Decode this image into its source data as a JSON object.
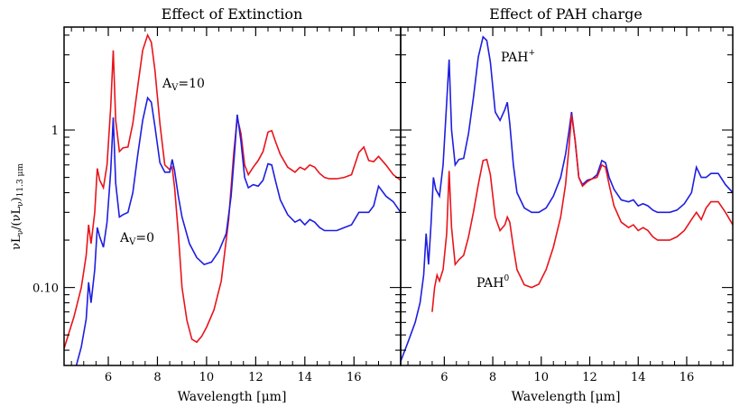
{
  "figure": {
    "ylabel": "νL_ν/(νL_ν)_11.3 μm",
    "ylabel_main": "νL",
    "ylabel_sub1": "ν",
    "ylabel_mid": "/(νL",
    "ylabel_sub2": "ν",
    "ylabel_close": ")",
    "ylabel_sub3": "11.3 μm"
  },
  "chart_data": [
    {
      "type": "line",
      "title": "Effect of Extinction",
      "xlabel": "Wavelength [μm]",
      "xlim": [
        4.2,
        17.9
      ],
      "ylim": [
        0.032,
        4.5
      ],
      "yscale": "log",
      "xticks": [
        6,
        8,
        10,
        12,
        14,
        16
      ],
      "xtick_labels": [
        "6",
        "8",
        "10",
        "12",
        "14",
        "16"
      ],
      "yticks": [
        1,
        0.1
      ],
      "ytick_labels": [
        "1",
        "0.10"
      ],
      "series": [
        {
          "name": "A_V=10",
          "label_main": "A",
          "label_sub": "V",
          "label_rest": "=10",
          "color": "#e8141b",
          "x": [
            4.2,
            4.6,
            4.9,
            5.1,
            5.2,
            5.3,
            5.45,
            5.55,
            5.65,
            5.8,
            5.95,
            6.1,
            6.2,
            6.3,
            6.45,
            6.6,
            6.8,
            7.0,
            7.2,
            7.4,
            7.6,
            7.75,
            7.9,
            8.1,
            8.3,
            8.5,
            8.6,
            8.7,
            8.85,
            9.0,
            9.2,
            9.4,
            9.6,
            9.8,
            10.0,
            10.3,
            10.6,
            10.9,
            11.1,
            11.25,
            11.4,
            11.55,
            11.7,
            11.9,
            12.1,
            12.3,
            12.5,
            12.65,
            12.8,
            13.0,
            13.3,
            13.6,
            13.8,
            14.0,
            14.2,
            14.4,
            14.6,
            14.8,
            15.0,
            15.3,
            15.6,
            15.9,
            16.2,
            16.4,
            16.6,
            16.8,
            17.0,
            17.3,
            17.6,
            17.9
          ],
          "y": [
            0.041,
            0.065,
            0.1,
            0.16,
            0.25,
            0.19,
            0.3,
            0.57,
            0.48,
            0.43,
            0.6,
            1.4,
            3.2,
            1.15,
            0.73,
            0.77,
            0.78,
            1.1,
            1.9,
            3.2,
            4.0,
            3.6,
            2.4,
            1.1,
            0.6,
            0.56,
            0.58,
            0.43,
            0.22,
            0.1,
            0.062,
            0.047,
            0.045,
            0.049,
            0.056,
            0.072,
            0.11,
            0.27,
            0.7,
            1.2,
            0.95,
            0.6,
            0.52,
            0.58,
            0.64,
            0.73,
            0.97,
            0.99,
            0.85,
            0.7,
            0.58,
            0.54,
            0.58,
            0.56,
            0.6,
            0.58,
            0.53,
            0.5,
            0.49,
            0.49,
            0.5,
            0.52,
            0.72,
            0.78,
            0.64,
            0.63,
            0.68,
            0.6,
            0.52,
            0.48
          ]
        },
        {
          "name": "A_V=0",
          "label_main": "A",
          "label_sub": "V",
          "label_rest": "=0",
          "color": "#1e1ee0",
          "x": [
            4.7,
            4.9,
            5.1,
            5.2,
            5.3,
            5.45,
            5.55,
            5.65,
            5.8,
            5.95,
            6.1,
            6.2,
            6.3,
            6.45,
            6.6,
            6.8,
            7.0,
            7.2,
            7.4,
            7.6,
            7.75,
            7.9,
            8.1,
            8.3,
            8.5,
            8.6,
            8.7,
            8.85,
            9.0,
            9.3,
            9.6,
            9.9,
            10.2,
            10.5,
            10.8,
            11.0,
            11.15,
            11.25,
            11.4,
            11.55,
            11.7,
            11.9,
            12.1,
            12.3,
            12.5,
            12.65,
            12.8,
            13.0,
            13.3,
            13.6,
            13.8,
            14.0,
            14.2,
            14.4,
            14.6,
            14.8,
            15.0,
            15.3,
            15.6,
            15.9,
            16.2,
            16.4,
            16.6,
            16.8,
            17.0,
            17.3,
            17.6,
            17.9
          ],
          "y": [
            0.032,
            0.042,
            0.063,
            0.108,
            0.08,
            0.13,
            0.24,
            0.21,
            0.18,
            0.26,
            0.55,
            1.2,
            0.46,
            0.28,
            0.29,
            0.3,
            0.4,
            0.7,
            1.15,
            1.6,
            1.5,
            1.05,
            0.62,
            0.54,
            0.54,
            0.65,
            0.55,
            0.38,
            0.28,
            0.19,
            0.155,
            0.14,
            0.145,
            0.17,
            0.22,
            0.38,
            0.75,
            1.25,
            0.85,
            0.5,
            0.43,
            0.45,
            0.44,
            0.48,
            0.61,
            0.6,
            0.48,
            0.36,
            0.29,
            0.26,
            0.27,
            0.25,
            0.27,
            0.26,
            0.24,
            0.23,
            0.23,
            0.23,
            0.24,
            0.25,
            0.3,
            0.3,
            0.3,
            0.33,
            0.44,
            0.38,
            0.35,
            0.3
          ]
        }
      ]
    },
    {
      "type": "line",
      "title": "Effect of PAH charge",
      "xlabel": "Wavelength [μm]",
      "xlim": [
        4.2,
        17.9
      ],
      "ylim": [
        0.032,
        4.5
      ],
      "yscale": "log",
      "xticks": [
        6,
        8,
        10,
        12,
        14,
        16
      ],
      "xtick_labels": [
        "6",
        "8",
        "10",
        "12",
        "14",
        "16"
      ],
      "series": [
        {
          "name": "PAH+",
          "label_main": "PAH",
          "label_sup": "+",
          "color": "#1e1ee0",
          "x": [
            4.2,
            4.5,
            4.8,
            5.0,
            5.15,
            5.25,
            5.35,
            5.45,
            5.55,
            5.65,
            5.8,
            5.95,
            6.1,
            6.2,
            6.3,
            6.45,
            6.6,
            6.8,
            7.0,
            7.2,
            7.4,
            7.6,
            7.75,
            7.9,
            8.1,
            8.3,
            8.5,
            8.6,
            8.7,
            8.85,
            9.0,
            9.3,
            9.6,
            9.9,
            10.2,
            10.5,
            10.8,
            11.0,
            11.15,
            11.25,
            11.4,
            11.55,
            11.7,
            11.9,
            12.1,
            12.3,
            12.5,
            12.65,
            12.8,
            13.0,
            13.3,
            13.6,
            13.8,
            14.0,
            14.2,
            14.4,
            14.6,
            14.8,
            15.0,
            15.3,
            15.6,
            15.9,
            16.2,
            16.4,
            16.6,
            16.8,
            17.0,
            17.3,
            17.6,
            17.9
          ],
          "y": [
            0.034,
            0.045,
            0.06,
            0.08,
            0.12,
            0.22,
            0.14,
            0.25,
            0.5,
            0.42,
            0.38,
            0.6,
            1.5,
            2.8,
            1.0,
            0.6,
            0.65,
            0.66,
            0.95,
            1.6,
            2.9,
            3.9,
            3.7,
            2.7,
            1.3,
            1.15,
            1.35,
            1.5,
            1.1,
            0.6,
            0.4,
            0.32,
            0.3,
            0.3,
            0.32,
            0.38,
            0.5,
            0.7,
            1.0,
            1.3,
            0.85,
            0.5,
            0.45,
            0.48,
            0.49,
            0.52,
            0.64,
            0.62,
            0.5,
            0.42,
            0.36,
            0.35,
            0.36,
            0.33,
            0.34,
            0.33,
            0.31,
            0.3,
            0.3,
            0.3,
            0.31,
            0.34,
            0.4,
            0.58,
            0.5,
            0.5,
            0.53,
            0.53,
            0.45,
            0.4
          ]
        },
        {
          "name": "PAH0",
          "label_main": "PAH",
          "label_sup": "0",
          "color": "#e8141b",
          "x": [
            5.5,
            5.6,
            5.7,
            5.8,
            5.95,
            6.1,
            6.2,
            6.3,
            6.45,
            6.6,
            6.8,
            7.0,
            7.2,
            7.4,
            7.6,
            7.75,
            7.9,
            8.1,
            8.3,
            8.5,
            8.6,
            8.7,
            8.85,
            9.0,
            9.3,
            9.6,
            9.9,
            10.2,
            10.5,
            10.8,
            11.0,
            11.15,
            11.25,
            11.4,
            11.55,
            11.7,
            11.9,
            12.1,
            12.3,
            12.5,
            12.65,
            12.8,
            13.0,
            13.3,
            13.6,
            13.8,
            14.0,
            14.2,
            14.4,
            14.6,
            14.8,
            15.0,
            15.3,
            15.6,
            15.9,
            16.2,
            16.4,
            16.6,
            16.8,
            17.0,
            17.3,
            17.6,
            17.9
          ],
          "y": [
            0.07,
            0.1,
            0.12,
            0.11,
            0.13,
            0.22,
            0.55,
            0.24,
            0.14,
            0.15,
            0.16,
            0.21,
            0.3,
            0.45,
            0.64,
            0.65,
            0.52,
            0.28,
            0.23,
            0.25,
            0.28,
            0.26,
            0.18,
            0.13,
            0.104,
            0.1,
            0.105,
            0.13,
            0.18,
            0.28,
            0.45,
            0.8,
            1.25,
            0.85,
            0.5,
            0.44,
            0.47,
            0.49,
            0.5,
            0.6,
            0.58,
            0.45,
            0.33,
            0.26,
            0.24,
            0.25,
            0.23,
            0.24,
            0.23,
            0.21,
            0.2,
            0.2,
            0.2,
            0.21,
            0.23,
            0.27,
            0.3,
            0.27,
            0.32,
            0.35,
            0.35,
            0.3,
            0.25
          ]
        }
      ]
    }
  ]
}
